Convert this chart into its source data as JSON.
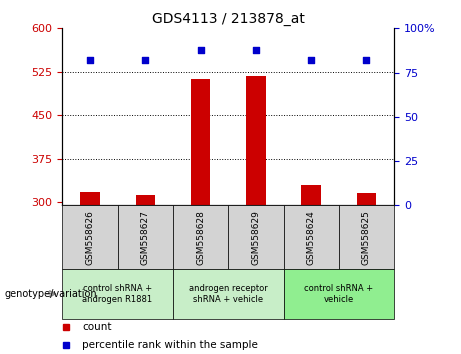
{
  "title": "GDS4113 / 213878_at",
  "samples": [
    "GSM558626",
    "GSM558627",
    "GSM558628",
    "GSM558629",
    "GSM558624",
    "GSM558625"
  ],
  "bar_values": [
    318,
    312,
    513,
    517,
    330,
    316
  ],
  "scatter_values": [
    82,
    82,
    88,
    88,
    82,
    82
  ],
  "ylim_left": [
    295,
    600
  ],
  "ylim_right": [
    0,
    100
  ],
  "yticks_left": [
    300,
    375,
    450,
    525,
    600
  ],
  "yticks_right": [
    0,
    25,
    50,
    75,
    100
  ],
  "bar_color": "#cc0000",
  "scatter_color": "#0000cc",
  "sample_box_color": "#d3d3d3",
  "groups": [
    {
      "label": "control shRNA +\nandrogen R1881",
      "span": [
        0,
        2
      ],
      "color": "#c8eec8"
    },
    {
      "label": "androgen receptor\nshRNA + vehicle",
      "span": [
        2,
        4
      ],
      "color": "#c8eec8"
    },
    {
      "label": "control shRNA +\nvehicle",
      "span": [
        4,
        6
      ],
      "color": "#90ee90"
    }
  ],
  "xlabel_main": "genotype/variation",
  "legend_count_color": "#cc0000",
  "legend_percentile_color": "#0000cc",
  "tick_color_left": "#cc0000",
  "tick_color_right": "#0000cc",
  "hgrid_values": [
    375,
    450,
    525
  ],
  "right_ytick_labels": [
    "0",
    "25",
    "50",
    "75",
    "100%"
  ]
}
